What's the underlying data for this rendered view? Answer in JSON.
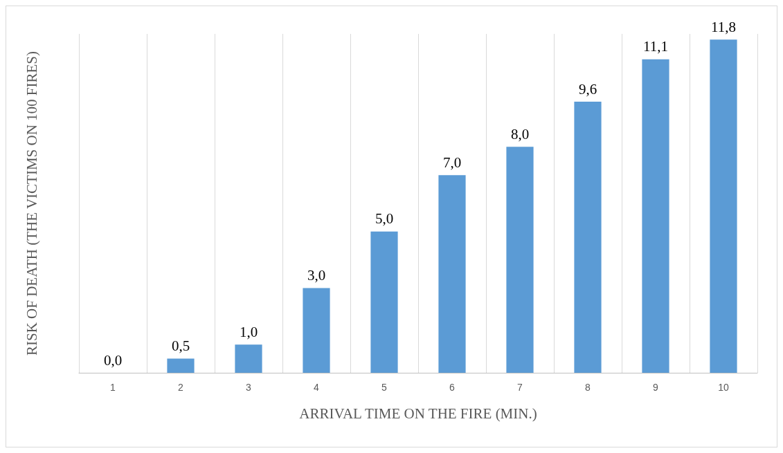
{
  "chart_data": {
    "type": "bar",
    "xlabel": "ARRIVAL TIME ON THE FIRE (MIN.)",
    "ylabel": "RISK OF DEATH (THE VICTIMS ON 100 FIRES)",
    "categories": [
      "1",
      "2",
      "3",
      "4",
      "5",
      "6",
      "7",
      "8",
      "9",
      "10"
    ],
    "values": [
      0.0,
      0.5,
      1.0,
      3.0,
      5.0,
      7.0,
      8.0,
      9.6,
      11.1,
      11.8
    ],
    "value_labels": [
      "0,0",
      "0,5",
      "1,0",
      "3,0",
      "5,0",
      "7,0",
      "8,0",
      "9,6",
      "11,1",
      "11,8"
    ],
    "color": "#5b9bd5",
    "grid": "x"
  }
}
